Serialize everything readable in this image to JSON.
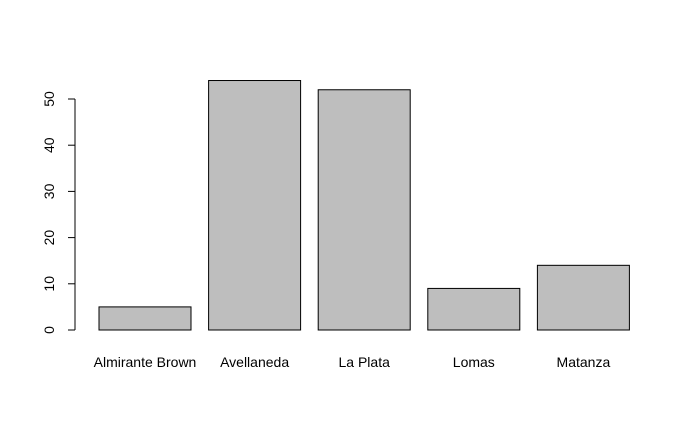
{
  "chart_data": {
    "type": "bar",
    "categories": [
      "Almirante Brown",
      "Avellaneda",
      "La Plata",
      "Lomas",
      "Matanza"
    ],
    "values": [
      5,
      54,
      52,
      9,
      14
    ],
    "title": "",
    "xlabel": "",
    "ylabel": "",
    "ylim": [
      0,
      50
    ],
    "yticks": [
      0,
      10,
      20,
      30,
      40,
      50
    ],
    "ytick_labels": [
      "0",
      "10",
      "20",
      "30",
      "40",
      "50"
    ],
    "grid": false,
    "legend": "none",
    "bar_color": "#bebebe",
    "border_color": "#000000"
  }
}
